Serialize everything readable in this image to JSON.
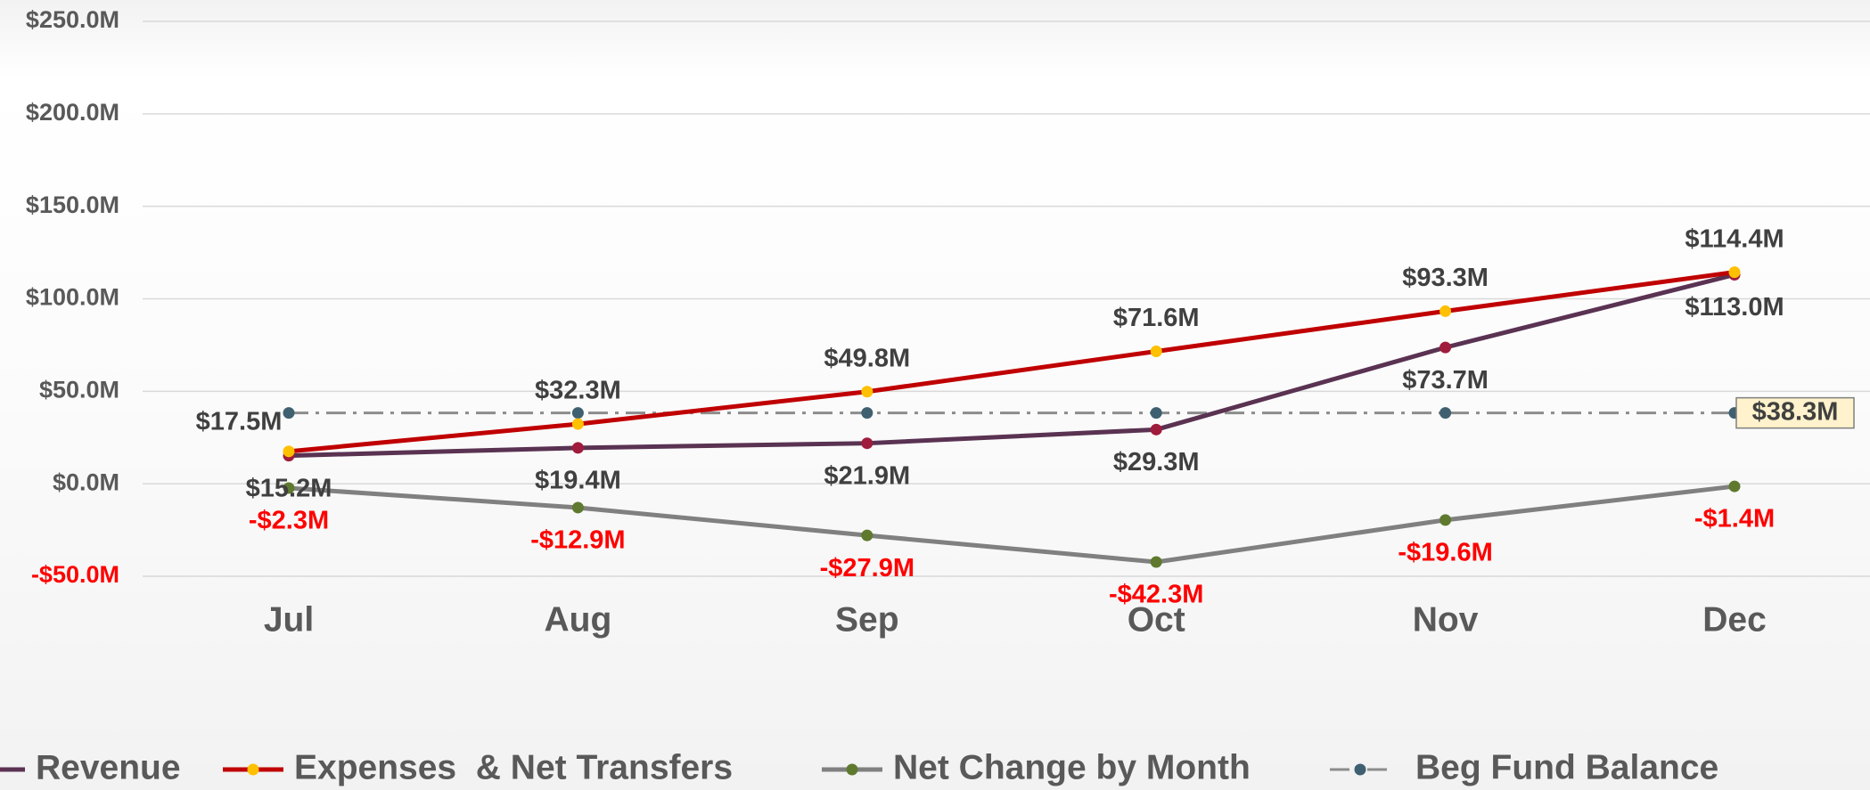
{
  "chart_data": {
    "type": "line",
    "categories": [
      "Jul",
      "Aug",
      "Sep",
      "Oct",
      "Nov",
      "Dec"
    ],
    "series": [
      {
        "name": "Revenue",
        "color": "#5a3252",
        "marker_color": "#a01c3c",
        "values": [
          15.2,
          19.4,
          21.9,
          29.3,
          73.7,
          113.0
        ],
        "value_labels": [
          "$15.2M",
          "$19.4M",
          "$21.9M",
          "$29.3M",
          "$73.7M",
          "$113.0M"
        ]
      },
      {
        "name": "Expenses  & Net Transfers",
        "color": "#c00000",
        "marker_color": "#ffc000",
        "values": [
          17.5,
          32.3,
          49.8,
          71.6,
          93.3,
          114.4
        ],
        "value_labels": [
          "$17.5M",
          "$32.3M",
          "$49.8M",
          "$71.6M",
          "$93.3M",
          "$114.4M"
        ]
      },
      {
        "name": "Net Change by Month",
        "color": "#808080",
        "marker_color": "#5f7a2e",
        "values": [
          -2.3,
          -12.9,
          -27.9,
          -42.3,
          -19.6,
          -1.4
        ],
        "value_labels": [
          "-$2.3M",
          "-$12.9M",
          "-$27.9M",
          "-$42.3M",
          "-$19.6M",
          "-$1.4M"
        ]
      },
      {
        "name": "Beg Fund Balance",
        "color": "#8c8c8c",
        "marker_color": "#3f6070",
        "line_style": "dash-dot",
        "values": [
          38.3,
          38.3,
          38.3,
          38.3,
          38.3,
          38.3
        ],
        "value_labels": [
          null,
          null,
          null,
          null,
          null,
          "$38.3M"
        ]
      }
    ],
    "ylim": [
      -50,
      250
    ],
    "yticks": [
      {
        "value": -50,
        "label": "-$50.0M"
      },
      {
        "value": 0,
        "label": "$0.0M"
      },
      {
        "value": 50,
        "label": "$50.0M"
      },
      {
        "value": 100,
        "label": "$100.0M"
      },
      {
        "value": 150,
        "label": "$150.0M"
      },
      {
        "value": 200,
        "label": "$200.0M"
      },
      {
        "value": 250,
        "label": "$250.0M"
      }
    ],
    "grid": true
  }
}
